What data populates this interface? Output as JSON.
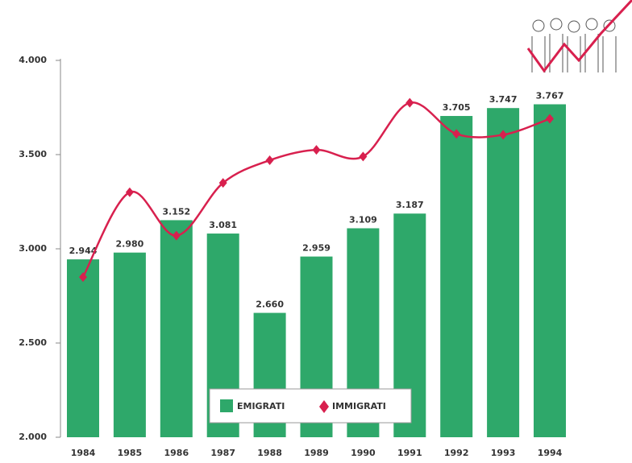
{
  "chart_data": {
    "type": "bar",
    "categories": [
      "1984",
      "1985",
      "1986",
      "1987",
      "1988",
      "1989",
      "1990",
      "1991",
      "1992",
      "1993",
      "1994"
    ],
    "series": [
      {
        "name": "EMIGRATI",
        "type": "bar",
        "color": "#2ea86a",
        "values": [
          2944,
          2980,
          3152,
          3081,
          2660,
          2959,
          3109,
          3187,
          3705,
          3747,
          3767
        ],
        "value_labels": [
          "2.944",
          "2.980",
          "3.152",
          "3.081",
          "2.660",
          "2.959",
          "3.109",
          "3.187",
          "3.705",
          "3.747",
          "3.767"
        ]
      },
      {
        "name": "IMMIGRATI",
        "type": "line",
        "color": "#d8204e",
        "values": [
          2850,
          3300,
          3070,
          3350,
          3470,
          3525,
          3490,
          3775,
          3610,
          3605,
          3690
        ]
      }
    ],
    "ylim": [
      2000,
      4000
    ],
    "yticks": [
      {
        "value": 2000,
        "label": "2.000"
      },
      {
        "value": 2500,
        "label": "2.500"
      },
      {
        "value": 3000,
        "label": "3.000"
      },
      {
        "value": 3500,
        "label": "3.500"
      },
      {
        "value": 4000,
        "label": "4.000"
      }
    ],
    "legend": "bottom"
  }
}
